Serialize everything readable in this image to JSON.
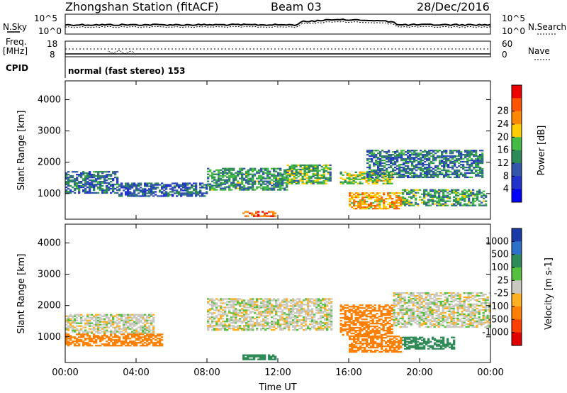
{
  "header": {
    "title": "Zhongshan Station (fitACF)",
    "beam": "Beam 03",
    "date": "28/Dec/2016"
  },
  "top_panel": {
    "left_label": "N.Sky",
    "right_label": "N.Search",
    "tick_top": "10^5",
    "tick_bottom": "10^0"
  },
  "freq_panel": {
    "left_label_1": "Freq.",
    "left_label_2": "[MHz]",
    "left_tick_top": "18",
    "left_tick_bottom": "8",
    "right_label": "Nave",
    "right_tick_top": "60",
    "right_tick_bottom": "0"
  },
  "cpid": {
    "label": "CPID",
    "text": "normal (fast stereo) 153"
  },
  "chart_data": [
    {
      "type": "heatmap",
      "title": "",
      "ylabel": "Slant Range [km]",
      "xlabel": "",
      "ylim": [
        180,
        4600
      ],
      "yticks": [
        "1000",
        "2000",
        "3000",
        "4000"
      ],
      "xticks": [
        "00:00",
        "04:00",
        "08:00",
        "12:00",
        "16:00",
        "20:00",
        "00:00"
      ],
      "xlim_hours": [
        0,
        24
      ],
      "colorbar": {
        "label": "Power [dB]",
        "ticks": [
          "4",
          "8",
          "12",
          "16",
          "20",
          "24",
          "28"
        ],
        "range": [
          0,
          32
        ],
        "colors": [
          "#0000ff",
          "#2233cc",
          "#3355aa",
          "#2e8b57",
          "#44bb44",
          "#ffcc00",
          "#ff8800",
          "#ff5500",
          "#ee0000"
        ]
      },
      "regions": [
        {
          "t0": 0.0,
          "t1": 3.0,
          "r0": 1000,
          "r1": 1700,
          "value": 10
        },
        {
          "t0": 3.0,
          "t1": 8.0,
          "r0": 900,
          "r1": 1350,
          "value": 9
        },
        {
          "t0": 8.0,
          "t1": 12.5,
          "r0": 1100,
          "r1": 1800,
          "value": 13
        },
        {
          "t0": 12.5,
          "t1": 15.0,
          "r0": 1300,
          "r1": 1900,
          "value": 15
        },
        {
          "t0": 10.0,
          "t1": 11.8,
          "r0": 260,
          "r1": 420,
          "value": 26
        },
        {
          "t0": 15.5,
          "t1": 18.5,
          "r0": 1300,
          "r1": 1700,
          "value": 17
        },
        {
          "t0": 16.0,
          "t1": 19.0,
          "r0": 500,
          "r1": 1000,
          "value": 22
        },
        {
          "t0": 17.0,
          "t1": 23.5,
          "r0": 1500,
          "r1": 2400,
          "value": 11
        },
        {
          "t0": 19.0,
          "t1": 23.8,
          "r0": 600,
          "r1": 1100,
          "value": 14
        }
      ]
    },
    {
      "type": "heatmap",
      "title": "",
      "ylabel": "Slant Range [km]",
      "xlabel": "Time UT",
      "ylim": [
        180,
        4600
      ],
      "yticks": [
        "1000",
        "2000",
        "3000",
        "4000"
      ],
      "xticks": [
        "00:00",
        "04:00",
        "08:00",
        "12:00",
        "16:00",
        "20:00",
        "00:00"
      ],
      "xlim_hours": [
        0,
        24
      ],
      "colorbar": {
        "label": "Velocity [m s-1]",
        "ticks": [
          "1000",
          "500",
          "100",
          "25",
          "-25",
          "-100",
          "-500",
          "-1000"
        ],
        "colors": [
          "#1a3aa8",
          "#2e6fc9",
          "#2e8b57",
          "#55c040",
          "#c8c8c0",
          "#ffb020",
          "#ff8000",
          "#ff4000",
          "#e00000"
        ]
      },
      "regions": [
        {
          "t0": 0.0,
          "t1": 5.0,
          "r0": 1100,
          "r1": 1700,
          "value": 0
        },
        {
          "t0": 0.0,
          "t1": 5.5,
          "r0": 700,
          "r1": 1100,
          "value": -150
        },
        {
          "t0": 8.0,
          "t1": 15.0,
          "r0": 1200,
          "r1": 2200,
          "value": 0
        },
        {
          "t0": 10.0,
          "t1": 12.0,
          "r0": 260,
          "r1": 420,
          "value": 150
        },
        {
          "t0": 15.5,
          "t1": 18.5,
          "r0": 1000,
          "r1": 2000,
          "value": -200
        },
        {
          "t0": 16.0,
          "t1": 19.0,
          "r0": 500,
          "r1": 1000,
          "value": -300
        },
        {
          "t0": 18.5,
          "t1": 24.0,
          "r0": 1300,
          "r1": 2400,
          "value": 0
        },
        {
          "t0": 19.0,
          "t1": 22.0,
          "r0": 600,
          "r1": 1000,
          "value": 150
        }
      ]
    }
  ]
}
